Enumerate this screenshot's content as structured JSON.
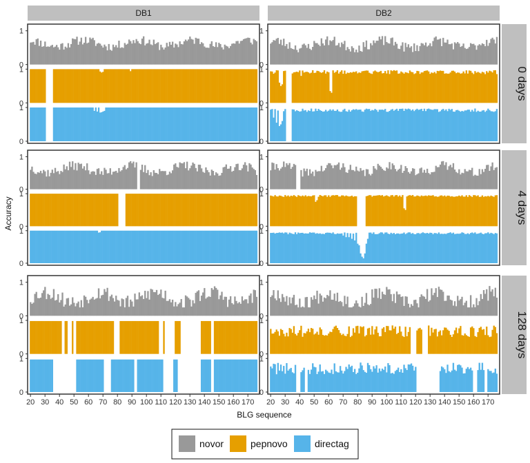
{
  "chart_data": {
    "type": "bar",
    "xlabel": "BLG sequence",
    "ylabel": "Accuracy",
    "x_range": [
      18,
      178
    ],
    "x_ticks": [
      "20",
      "30",
      "40",
      "50",
      "60",
      "70",
      "80",
      "90",
      "100",
      "110",
      "120",
      "130",
      "140",
      "150",
      "160",
      "170"
    ],
    "y_ticks": [
      "0",
      "1"
    ],
    "columns": [
      "DB1",
      "DB2"
    ],
    "rows": [
      "0 days",
      "4 days",
      "128 days"
    ],
    "series": [
      {
        "name": "novor",
        "color": "#999999"
      },
      {
        "name": "pepnovo",
        "color": "#E69F00"
      },
      {
        "name": "directag",
        "color": "#56B4E9"
      }
    ],
    "panels": [
      {
        "column": "DB1",
        "row": "0 days",
        "novor": {
          "base": 0.63,
          "amp": 0.27,
          "zero": [],
          "seed": 11
        },
        "pepnovo": {
          "full": 1.0,
          "zero": [
            [
              31,
              35
            ]
          ],
          "dips": [
            [
              68,
              0.93
            ],
            [
              69,
              0.9
            ],
            [
              70,
              0.92
            ],
            [
              89,
              0.94
            ]
          ]
        },
        "directag": {
          "full": 1.0,
          "zero": [
            [
              31,
              35
            ]
          ],
          "dips": [
            [
              64,
              0.9
            ],
            [
              66,
              0.88
            ],
            [
              68,
              0.85
            ],
            [
              69,
              0.86
            ],
            [
              70,
              0.88
            ],
            [
              71,
              0.9
            ]
          ]
        }
      },
      {
        "column": "DB2",
        "row": "0 days",
        "novor": {
          "base": 0.6,
          "amp": 0.3,
          "zero": [],
          "seed": 23
        },
        "pepnovo": {
          "full": 0.97,
          "zero": [
            [
              31,
              34
            ]
          ],
          "noise": 0.12,
          "dips": [
            [
              26,
              0.6
            ],
            [
              27,
              0.5
            ],
            [
              28,
              0.55
            ],
            [
              41,
              0.8
            ],
            [
              61,
              0.35
            ],
            [
              62,
              0.3
            ]
          ]
        },
        "directag": {
          "full": 0.97,
          "zero": [
            [
              31,
              34
            ]
          ],
          "noise": 0.1,
          "dips": [
            [
              22,
              0.7
            ],
            [
              24,
              0.55
            ],
            [
              26,
              0.45
            ],
            [
              27,
              0.5
            ],
            [
              28,
              0.6
            ]
          ]
        }
      },
      {
        "column": "DB1",
        "row": "4 days",
        "novor": {
          "base": 0.62,
          "amp": 0.3,
          "zero": [
            [
              94,
              95
            ]
          ],
          "seed": 37
        },
        "pepnovo": {
          "full": 1.0,
          "zero": [
            [
              81,
              85
            ]
          ],
          "dips": []
        },
        "directag": {
          "full": 1.0,
          "zero": [],
          "dips": [
            [
              67,
              0.94
            ],
            [
              68,
              0.95
            ]
          ]
        }
      },
      {
        "column": "DB2",
        "row": "4 days",
        "novor": {
          "base": 0.62,
          "amp": 0.3,
          "zero": [
            [
              38,
              40
            ]
          ],
          "seed": 41
        },
        "pepnovo": {
          "full": 0.96,
          "zero": [
            [
              80,
              85
            ]
          ],
          "noise": 0.06,
          "dips": [
            [
              51,
              0.75
            ],
            [
              52,
              0.8
            ],
            [
              112,
              0.55
            ],
            [
              113,
              0.5
            ]
          ]
        },
        "directag": {
          "full": 0.95,
          "zero": [],
          "noise": 0.06,
          "dips": [
            [
              70,
              0.85
            ],
            [
              72,
              0.8
            ],
            [
              74,
              0.8
            ],
            [
              76,
              0.75
            ],
            [
              78,
              0.7
            ],
            [
              80,
              0.6
            ],
            [
              81,
              0.55
            ],
            [
              82,
              0.3
            ],
            [
              83,
              0.2
            ],
            [
              84,
              0.15
            ],
            [
              85,
              0.3
            ],
            [
              86,
              0.6
            ],
            [
              87,
              0.75
            ]
          ]
        }
      },
      {
        "column": "DB1",
        "row": "128 days",
        "novor": {
          "base": 0.55,
          "amp": 0.45,
          "zero": [],
          "seed": 53
        },
        "pepnovo": {
          "full": 0.98,
          "zero": [
            [
              42,
              43
            ],
            [
              46,
              48
            ],
            [
              50,
              51
            ],
            [
              78,
              81
            ],
            [
              109,
              111
            ],
            [
              113,
              119
            ],
            [
              124,
              137
            ],
            [
              145,
              146
            ]
          ],
          "dips": []
        },
        "directag": {
          "full": 0.97,
          "zero": [
            [
              36,
              51
            ],
            [
              71,
              75
            ],
            [
              92,
              93
            ],
            [
              112,
              118
            ],
            [
              122,
              137
            ],
            [
              145,
              146
            ]
          ],
          "dips": []
        }
      },
      {
        "column": "DB2",
        "row": "128 days",
        "novor": {
          "base": 0.52,
          "amp": 0.45,
          "zero": [],
          "seed": 67
        },
        "pepnovo": {
          "full": 0.85,
          "zero": [
            [
              117,
              120
            ],
            [
              125,
              128
            ]
          ],
          "noise": 0.35,
          "dips": []
        },
        "directag": {
          "full": 0.88,
          "zero": [
            [
              38,
              40
            ],
            [
              44,
              45
            ],
            [
              121,
              136
            ],
            [
              160,
              162
            ],
            [
              168,
              169
            ]
          ],
          "noise": 0.35,
          "dips": []
        }
      }
    ],
    "legend": {
      "position": "bottom",
      "labels": [
        "novor",
        "pepnovo",
        "directag"
      ]
    }
  }
}
